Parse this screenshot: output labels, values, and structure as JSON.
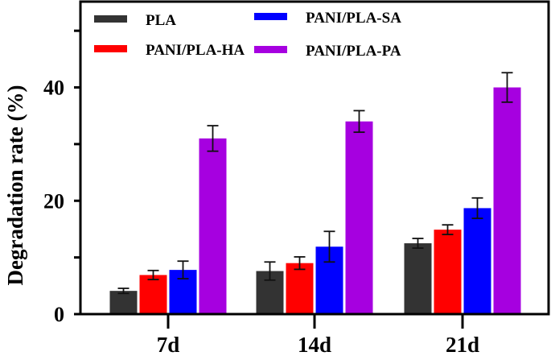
{
  "chart_data": {
    "type": "bar",
    "ylabel": "Degradation rate (%)",
    "xlabel": "",
    "categories": [
      "7d",
      "14d",
      "21d"
    ],
    "ylim": [
      0,
      55
    ],
    "yticks_labeled": [
      0,
      20,
      40
    ],
    "yticks_minor": [
      10,
      30,
      50
    ],
    "grid": false,
    "legend_placement": "top-left",
    "series": [
      {
        "name": "PLA",
        "color": "#333333",
        "values": [
          4.1,
          7.6,
          12.5
        ],
        "errors": [
          0.45,
          1.6,
          0.85
        ]
      },
      {
        "name": "PANI/PLA-HA",
        "color": "#ff0000",
        "values": [
          6.9,
          9.0,
          14.9
        ],
        "errors": [
          0.8,
          1.1,
          0.85
        ]
      },
      {
        "name": "PANI/PLA-SA",
        "color": "#0000ff",
        "values": [
          7.8,
          11.9,
          18.7
        ],
        "errors": [
          1.55,
          2.7,
          1.8
        ]
      },
      {
        "name": "PANI/PLA-PA",
        "color": "#a600e0",
        "values": [
          31.0,
          34.0,
          40.0
        ],
        "errors": [
          2.25,
          1.9,
          2.6
        ]
      }
    ]
  }
}
